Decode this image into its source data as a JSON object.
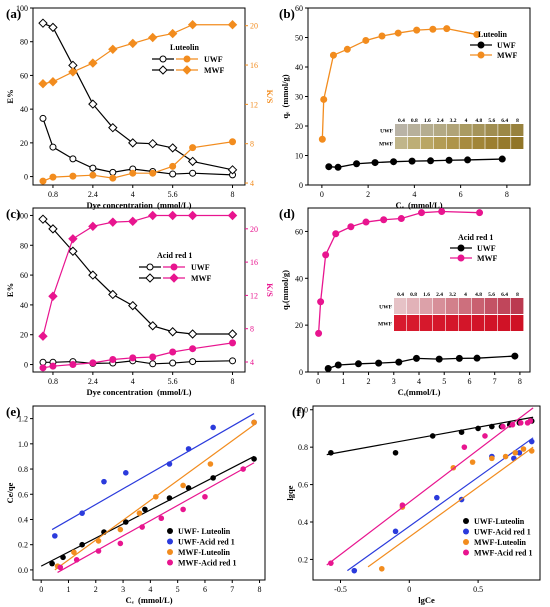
{
  "chart_data": [
    {
      "panel": "(a)",
      "type": "line",
      "annotation": "Luteolin",
      "xlabel": "Dye concentration  (mmol/L)",
      "ylabel": "E%",
      "y2label": "K/S",
      "xlim": [
        0,
        8.5
      ],
      "ylim": [
        -5,
        100
      ],
      "y2lim": [
        3.8,
        21.8
      ],
      "xticks": [
        0.8,
        2.4,
        4,
        5.6,
        8
      ],
      "yticks": [
        0,
        20,
        40,
        60,
        80,
        100
      ],
      "y2ticks": [
        4,
        8,
        12,
        16,
        20
      ],
      "x": [
        0.4,
        0.8,
        1.6,
        2.4,
        3.2,
        4,
        4.8,
        5.6,
        6.4,
        8
      ],
      "series": [
        {
          "name": "UWF",
          "axis": "left",
          "values": [
            34.5,
            17.5,
            10.5,
            5,
            2.5,
            4.5,
            3,
            1.5,
            2,
            1
          ],
          "color": "#000000",
          "marker": "circle"
        },
        {
          "name": "MWF",
          "axis": "left",
          "values": [
            91,
            88.5,
            66,
            43,
            29,
            20,
            19.5,
            17,
            9,
            4
          ],
          "color": "#000000",
          "marker": "diamond"
        },
        {
          "name": "UWF",
          "axis": "right",
          "values": [
            4.2,
            4.6,
            4.7,
            4.8,
            4.5,
            5,
            5,
            5.7,
            7.6,
            8.2
          ],
          "color": "#f28c1e",
          "marker": "circle"
        },
        {
          "name": "MWF",
          "axis": "right",
          "values": [
            14.1,
            14.3,
            15.3,
            16.2,
            17.6,
            18.2,
            18.8,
            19.2,
            20.1,
            20.1
          ],
          "color": "#f28c1e",
          "marker": "diamond"
        }
      ]
    },
    {
      "panel": "(b)",
      "type": "line",
      "annotation": "Luteolin",
      "xlabel": "Cₑ  (mmol/L)",
      "ylabel": "qₑ  (mmol/g)",
      "xlim": [
        -0.6,
        9
      ],
      "ylim": [
        0,
        60
      ],
      "xticks": [
        0,
        2,
        4,
        6,
        8
      ],
      "yticks": [
        0,
        10,
        20,
        30,
        40,
        50,
        60
      ],
      "series": [
        {
          "name": "UWF",
          "x": [
            0.3,
            0.7,
            1.5,
            2.3,
            3.1,
            3.9,
            4.7,
            5.5,
            6.3,
            7.8
          ],
          "values": [
            6.2,
            6,
            7.2,
            7.6,
            7.9,
            8.1,
            8.2,
            8.4,
            8.5,
            8.8
          ],
          "color": "#000000",
          "marker": "circle"
        },
        {
          "name": "MWF",
          "x": [
            0.02,
            0.08,
            0.5,
            1.1,
            1.9,
            2.6,
            3.3,
            4.1,
            4.8,
            5.4,
            6.7
          ],
          "values": [
            15.5,
            29,
            44,
            46,
            49,
            50.5,
            51.5,
            52.5,
            52.8,
            53,
            51
          ],
          "color": "#f28c1e",
          "marker": "circle"
        }
      ]
    },
    {
      "panel": "(c)",
      "type": "line",
      "annotation": "Acid red 1",
      "xlabel": "Dye concentration  (mmol/L)",
      "ylabel": "E%",
      "y2label": "K/S",
      "xlim": [
        0,
        8.5
      ],
      "ylim": [
        -5,
        105
      ],
      "y2lim": [
        2.8,
        22.5
      ],
      "xticks": [
        0.8,
        2.4,
        4,
        5.6,
        8
      ],
      "yticks": [
        0,
        20,
        40,
        60,
        80,
        100
      ],
      "y2ticks": [
        4,
        8,
        12,
        16,
        20
      ],
      "x": [
        0.4,
        0.8,
        1.6,
        2.4,
        3.2,
        4,
        4.8,
        5.6,
        6.4,
        8
      ],
      "series": [
        {
          "name": "UWF",
          "axis": "left",
          "values": [
            1.5,
            1.5,
            2,
            0.8,
            1,
            2.5,
            0.5,
            1,
            2,
            2.5
          ],
          "color": "#000000",
          "marker": "circle"
        },
        {
          "name": "MWF",
          "axis": "left",
          "values": [
            97.5,
            91,
            76,
            60,
            47,
            39.5,
            26,
            22,
            20.5,
            20.5
          ],
          "color": "#000000",
          "marker": "diamond"
        },
        {
          "name": "UWF",
          "axis": "right",
          "values": [
            3.3,
            3.5,
            3.7,
            3.9,
            4.3,
            4.5,
            4.6,
            5.2,
            5.6,
            6.3
          ],
          "color": "#e8158f",
          "marker": "circle"
        },
        {
          "name": "MWF",
          "axis": "right",
          "values": [
            7.1,
            11.9,
            18.8,
            20.3,
            20.8,
            20.9,
            21.6,
            21.6,
            21.6,
            21.6
          ],
          "color": "#e8158f",
          "marker": "diamond"
        }
      ]
    },
    {
      "panel": "(d)",
      "type": "line",
      "annotation": "Acid red 1",
      "xlabel": "Cₑ(mmol/L)",
      "ylabel": "qₑ(mmol/g)",
      "xlim": [
        -0.4,
        8.4
      ],
      "ylim": [
        0,
        70
      ],
      "xticks": [
        0,
        1,
        2,
        3,
        4,
        5,
        6,
        7,
        8
      ],
      "yticks": [
        0,
        20,
        40,
        60
      ],
      "series": [
        {
          "name": "UWF",
          "x": [
            0.4,
            0.8,
            1.6,
            2.4,
            3.2,
            3.9,
            4.8,
            5.6,
            6.3,
            7.8
          ],
          "values": [
            1.5,
            3,
            3.5,
            3.8,
            4.2,
            5.8,
            5.5,
            5.8,
            5.9,
            6.8
          ],
          "color": "#000000",
          "marker": "circle"
        },
        {
          "name": "MWF",
          "x": [
            0.02,
            0.1,
            0.3,
            0.7,
            1.3,
            1.9,
            2.6,
            3.3,
            4.1,
            4.9,
            6.4
          ],
          "values": [
            16.5,
            30,
            50,
            59,
            62,
            64,
            65,
            65.5,
            68,
            68.5,
            68
          ],
          "color": "#e8158f",
          "marker": "circle"
        }
      ]
    },
    {
      "panel": "(e)",
      "type": "scatter",
      "xlabel": "Cₑ  (mmol/L)",
      "ylabel": "Ce/qe",
      "xlim": [
        -0.3,
        8.2
      ],
      "ylim": [
        -0.08,
        1.3
      ],
      "xticks": [
        0,
        1,
        2,
        3,
        4,
        5,
        6,
        7,
        8
      ],
      "yticks": [
        0.0,
        0.2,
        0.4,
        0.6,
        0.8,
        1.0,
        1.2
      ],
      "series": [
        {
          "name": "UWF- Luteolin",
          "color": "#000000",
          "x": [
            0.4,
            0.8,
            1.5,
            2.3,
            3.1,
            3.8,
            4.7,
            5.4,
            6.3,
            7.8
          ],
          "values": [
            0.05,
            0.1,
            0.2,
            0.3,
            0.38,
            0.48,
            0.57,
            0.65,
            0.73,
            0.88
          ],
          "fit": [
            [
              0,
              0.03
            ],
            [
              7.8,
              0.9
            ]
          ]
        },
        {
          "name": "UWF-Acid red 1",
          "color": "#2b3bdc",
          "x": [
            0.5,
            1.5,
            2.3,
            3.1,
            4.7,
            5.4,
            6.3,
            7.8
          ],
          "values": [
            0.27,
            0.45,
            0.7,
            0.77,
            0.84,
            0.96,
            1.13,
            1.17
          ],
          "fit": [
            [
              0.4,
              0.32
            ],
            [
              7.8,
              1.24
            ]
          ]
        },
        {
          "name": "MWF-Luteolin",
          "color": "#f28c1e",
          "x": [
            0.6,
            1.2,
            2.1,
            2.9,
            3.6,
            4.2,
            5.2,
            6.2,
            7.8
          ],
          "values": [
            0.03,
            0.14,
            0.23,
            0.32,
            0.45,
            0.58,
            0.67,
            0.84,
            1.17
          ],
          "fit": [
            [
              0.5,
              0.0
            ],
            [
              7.8,
              1.15
            ]
          ]
        },
        {
          "name": "MWF-Acid red 1",
          "color": "#e8158f",
          "x": [
            0.7,
            1.3,
            2.1,
            2.9,
            3.7,
            4.4,
            5.2,
            6.0,
            7.4
          ],
          "values": [
            0.02,
            0.08,
            0.15,
            0.21,
            0.34,
            0.41,
            0.48,
            0.58,
            0.8
          ],
          "fit": [
            [
              0.6,
              -0.02
            ],
            [
              7.8,
              0.85
            ]
          ]
        }
      ]
    },
    {
      "panel": "(f)",
      "type": "scatter",
      "xlabel": "lgCe",
      "ylabel": "lgqe",
      "xlim": [
        -0.7,
        0.95
      ],
      "ylim": [
        0.09,
        1.02
      ],
      "xticks": [
        -0.5,
        0.0,
        0.5
      ],
      "yticks": [
        0.2,
        0.4,
        0.6,
        0.8,
        1.0
      ],
      "series": [
        {
          "name": "UWF-Luteolin",
          "color": "#000000",
          "x": [
            -0.57,
            -0.1,
            0.17,
            0.38,
            0.5,
            0.6,
            0.67,
            0.73,
            0.8,
            0.89
          ],
          "values": [
            0.77,
            0.77,
            0.86,
            0.88,
            0.9,
            0.91,
            0.91,
            0.92,
            0.93,
            0.94
          ],
          "fit": [
            [
              -0.6,
              0.76
            ],
            [
              0.9,
              0.96
            ]
          ]
        },
        {
          "name": "UWF-Acid red 1",
          "color": "#2b3bdc",
          "x": [
            -0.4,
            -0.1,
            0.2,
            0.38,
            0.6,
            0.76,
            0.8,
            0.89
          ],
          "values": [
            0.14,
            0.35,
            0.53,
            0.52,
            0.75,
            0.74,
            0.77,
            0.83
          ],
          "fit": [
            [
              -0.45,
              0.14
            ],
            [
              0.9,
              0.85
            ]
          ]
        },
        {
          "name": "MWF-Luteolin",
          "color": "#f28c1e",
          "x": [
            -0.2,
            -0.05,
            0.32,
            0.46,
            0.6,
            0.7,
            0.77,
            0.83,
            0.89
          ],
          "values": [
            0.15,
            0.48,
            0.69,
            0.72,
            0.74,
            0.75,
            0.77,
            0.79,
            0.78
          ],
          "fit": [
            [
              -0.3,
              0.16
            ],
            [
              0.9,
              0.8
            ]
          ]
        },
        {
          "name": "MWF-Acid red 1",
          "color": "#e8158f",
          "x": [
            -0.57,
            -0.05,
            0.4,
            0.55,
            0.68,
            0.75,
            0.81,
            0.86,
            0.88
          ],
          "values": [
            0.18,
            0.49,
            0.8,
            0.86,
            0.91,
            0.92,
            0.93,
            0.93,
            0.94
          ],
          "fit": [
            [
              -0.6,
              0.17
            ],
            [
              0.9,
              1.01
            ]
          ]
        }
      ]
    }
  ],
  "inset_b": {
    "concentrations": [
      "0.4",
      "0.8",
      "1.6",
      "2.4",
      "3.2",
      "4",
      "4.8",
      "5.6",
      "6.4",
      "8"
    ],
    "rows": [
      {
        "label": "UWF",
        "colors": [
          "#b9b3a6",
          "#b7b09b",
          "#b5ad90",
          "#b3a984",
          "#b0a377",
          "#aa9b62",
          "#a5945a",
          "#a08d50",
          "#9c8846",
          "#98823e"
        ]
      },
      {
        "label": "MWF",
        "colors": [
          "#c0b58a",
          "#bdae76",
          "#b9a665",
          "#b39c55",
          "#ae944a",
          "#a78b3f",
          "#a18537",
          "#9c7f31",
          "#967a2c",
          "#917527"
        ]
      }
    ]
  },
  "inset_d": {
    "concentrations": [
      "0.4",
      "0.8",
      "1.6",
      "2.4",
      "3.2",
      "4",
      "4.8",
      "5.6",
      "6.4",
      "8"
    ],
    "rows": [
      {
        "label": "UWF",
        "colors": [
          "#e6c2c6",
          "#e2b2b8",
          "#dca1a9",
          "#d78f99",
          "#d2808b",
          "#cd6f7d",
          "#c96070",
          "#c45265",
          "#c0465b",
          "#bb3a50"
        ]
      },
      {
        "label": "MWF",
        "colors": [
          "#d81a2e",
          "#d71a2d",
          "#d6182c",
          "#d5172b",
          "#d4162a",
          "#d31529",
          "#d21428",
          "#d11327",
          "#d01226",
          "#cf1125"
        ]
      }
    ]
  }
}
